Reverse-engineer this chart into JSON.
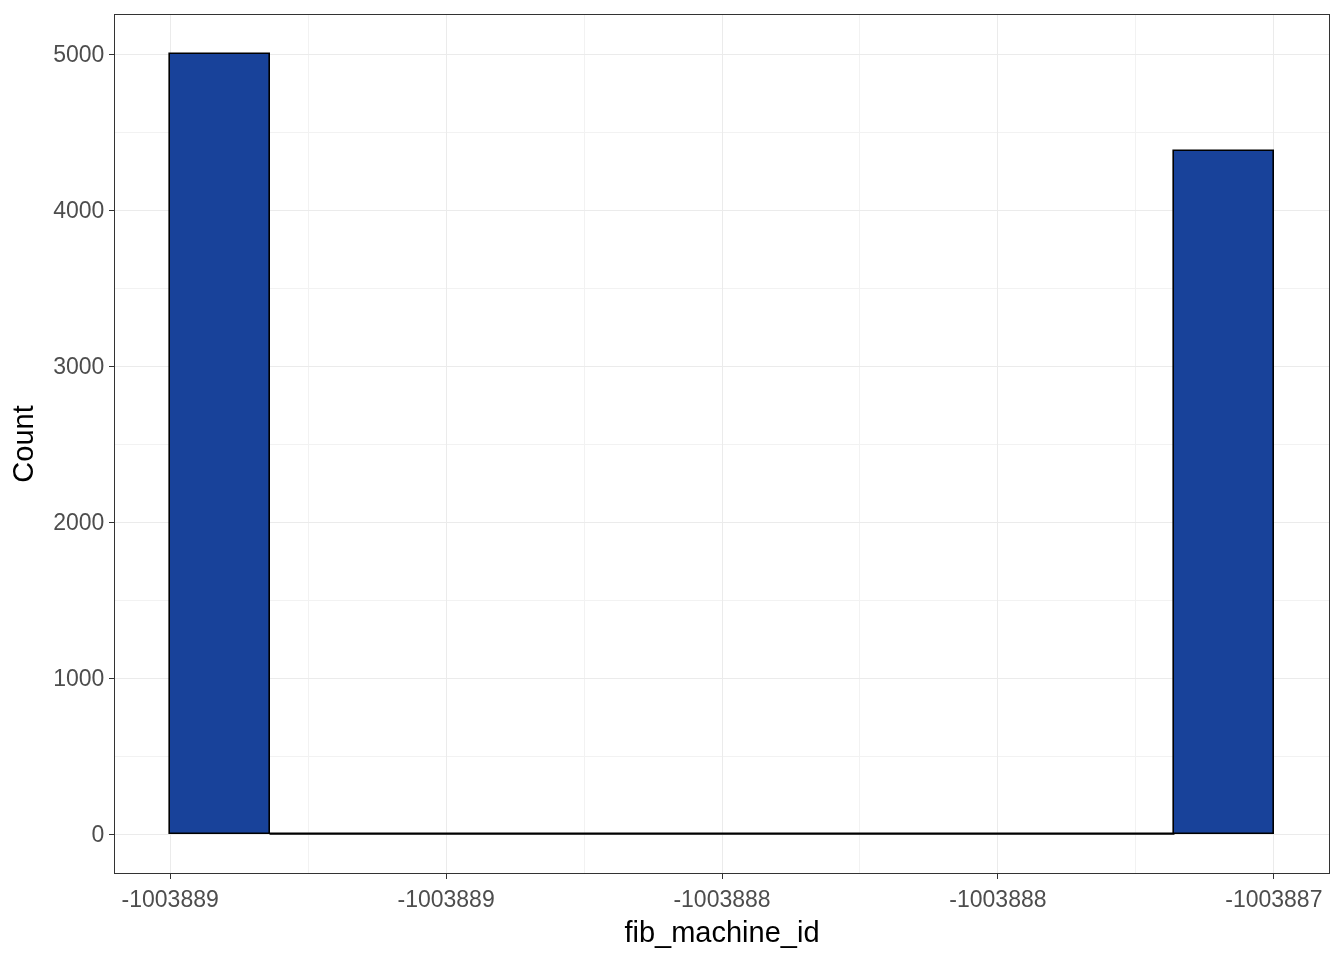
{
  "chart_data": {
    "type": "histogram",
    "xlabel": "fib_machine_id",
    "ylabel": "Count",
    "bins": [
      -1003889.0,
      -1003888.82,
      -1003887.18,
      -1003887.0
    ],
    "values": [
      5000,
      0,
      4380
    ],
    "color": "#18429a",
    "xlim": [
      -1003889.1,
      -1003886.9
    ],
    "xticks": [
      {
        "value": -1003889.0,
        "label": "-1003889"
      },
      {
        "value": -1003888.5,
        "label": "-1003889"
      },
      {
        "value": -1003888.0,
        "label": "-1003888"
      },
      {
        "value": -1003887.5,
        "label": "-1003888"
      },
      {
        "value": -1003887.0,
        "label": "-1003887"
      }
    ],
    "ylim": [
      -250,
      5250
    ],
    "yticks": [
      0,
      1000,
      2000,
      3000,
      4000,
      5000
    ],
    "grid": true
  }
}
